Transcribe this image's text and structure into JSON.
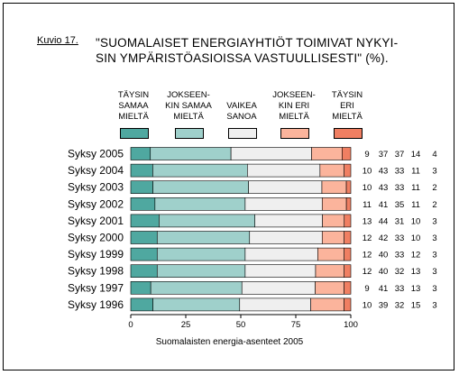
{
  "figure_label": "Kuvio 17.",
  "title_lines": [
    "\"SUOMALAISET ENERGIAYHTIÖT TOIMIVAT NYKYI-",
    "SIN YMPÄRISTÖASIOISSA VASTUULLISESTI\" (%)."
  ],
  "legend": [
    {
      "lines": [
        "TÄYSIN",
        "SAMAA",
        "MIELTÄ"
      ],
      "color": "#4fa8a0"
    },
    {
      "lines": [
        "JOKSEEN-",
        "KIN SAMAA",
        "MIELTÄ"
      ],
      "color": "#9fd0cb"
    },
    {
      "lines": [
        "VAIKEA",
        "SANOA"
      ],
      "color": "#efefef"
    },
    {
      "lines": [
        "JOKSEEN-",
        "KIN ERI",
        "MIELTÄ"
      ],
      "color": "#fbb49c"
    },
    {
      "lines": [
        "TÄYSIN",
        "ERI",
        "MIELTÄ"
      ],
      "color": "#f07f62"
    }
  ],
  "source_note": "Suomalaisten energia-asenteet 2005",
  "chart_data": {
    "type": "bar",
    "orientation": "horizontal",
    "stacked": true,
    "categories": [
      "Syksy 2005",
      "Syksy 2004",
      "Syksy 2003",
      "Syksy 2002",
      "Syksy 2001",
      "Syksy 2000",
      "Syksy 1999",
      "Syksy 1998",
      "Syksy 1997",
      "Syksy 1996"
    ],
    "series": [
      {
        "name": "TÄYSIN SAMAA MIELTÄ",
        "values": [
          9,
          10,
          10,
          11,
          13,
          12,
          12,
          12,
          9,
          10
        ]
      },
      {
        "name": "JOKSEENKIN SAMAA MIELTÄ",
        "values": [
          37,
          43,
          43,
          41,
          44,
          42,
          40,
          40,
          41,
          39
        ]
      },
      {
        "name": "VAIKEA SANOA",
        "values": [
          37,
          33,
          33,
          35,
          31,
          33,
          33,
          32,
          33,
          32
        ]
      },
      {
        "name": "JOKSEENKIN ERI MIELTÄ",
        "values": [
          14,
          11,
          11,
          11,
          10,
          10,
          12,
          13,
          13,
          15
        ]
      },
      {
        "name": "TÄYSIN ERI MIELTÄ",
        "values": [
          4,
          3,
          2,
          2,
          3,
          3,
          3,
          3,
          3,
          3
        ]
      }
    ],
    "xlim": [
      0,
      100
    ],
    "xticks": [
      0,
      25,
      50,
      75,
      100
    ],
    "grid": false
  }
}
